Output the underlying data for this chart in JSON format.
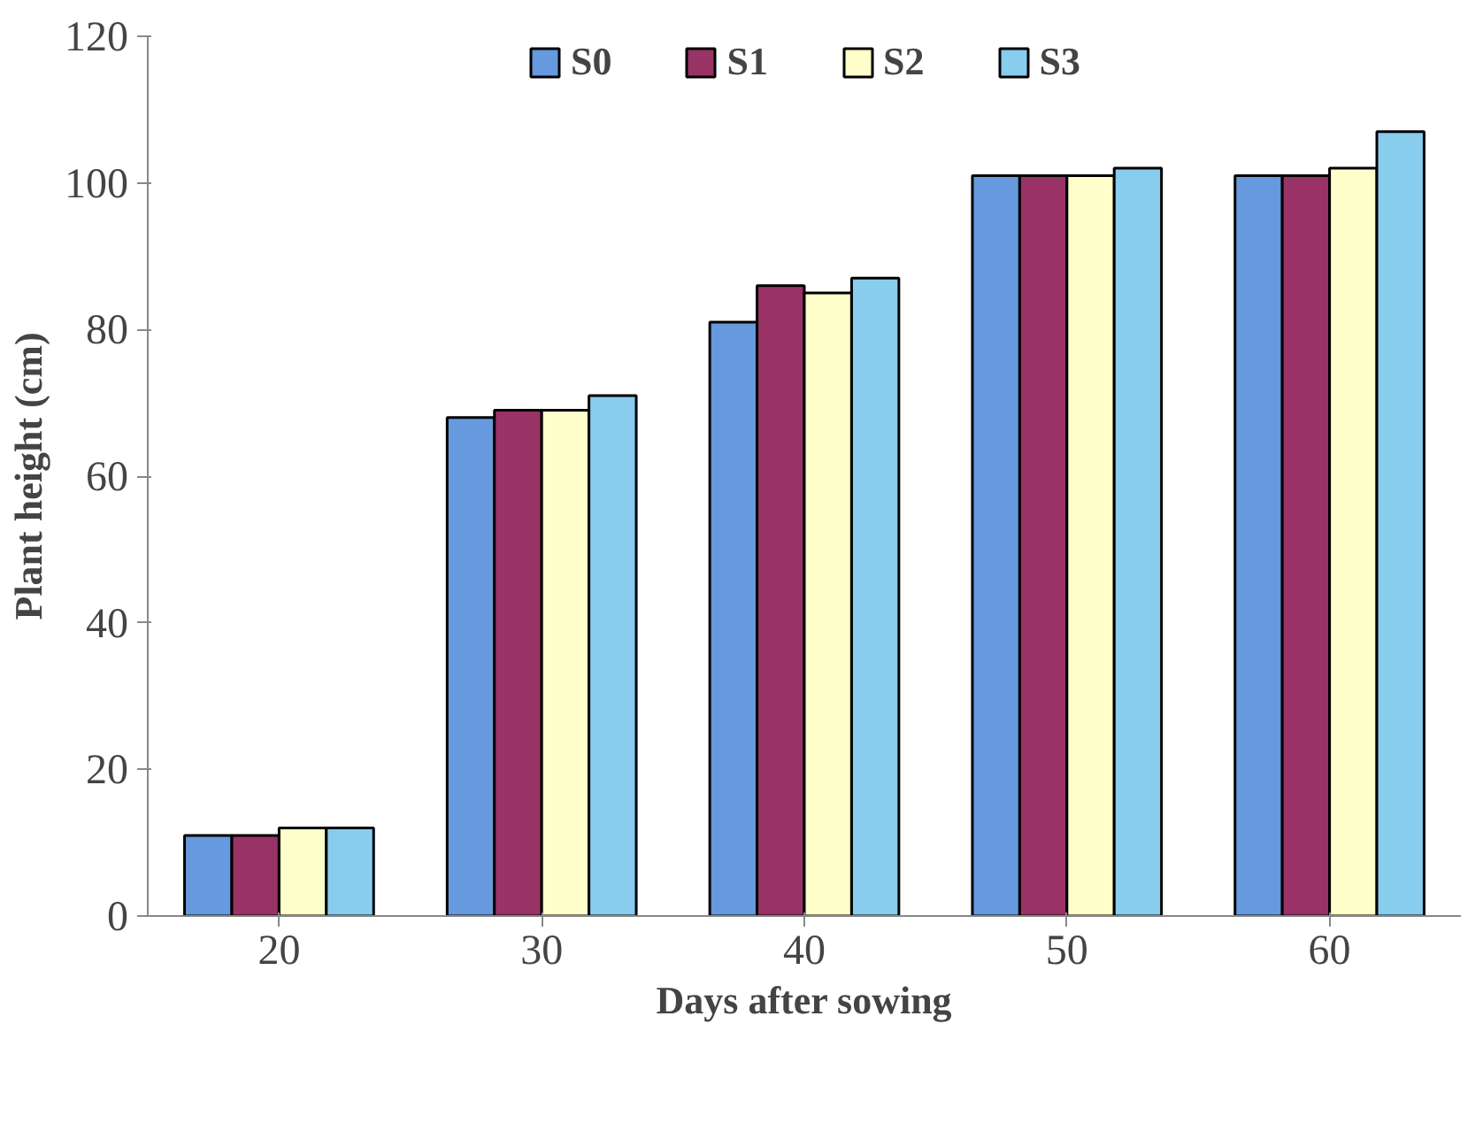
{
  "chart_data": {
    "type": "bar",
    "xlabel": "Days after sowing",
    "ylabel": "Plant height (cm)",
    "categories": [
      "20",
      "30",
      "40",
      "50",
      "60"
    ],
    "series": [
      {
        "name": "S0",
        "color": "#6699dd",
        "values": [
          11,
          68,
          81,
          101,
          101
        ]
      },
      {
        "name": "S1",
        "color": "#993366",
        "values": [
          11,
          69,
          86,
          101,
          101
        ]
      },
      {
        "name": "S2",
        "color": "#ffffcc",
        "values": [
          12,
          69,
          85,
          101,
          102
        ]
      },
      {
        "name": "S3",
        "color": "#88ccee",
        "values": [
          12,
          71,
          87,
          102,
          107
        ]
      }
    ],
    "ylim": [
      0,
      120
    ],
    "yticks": [
      0,
      20,
      40,
      60,
      80,
      100,
      120
    ],
    "grid": false,
    "legend": "top"
  }
}
